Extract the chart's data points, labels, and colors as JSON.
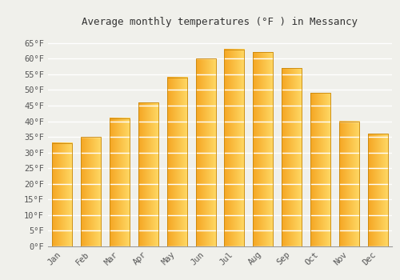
{
  "title": "Average monthly temperatures (°F ) in Messancy",
  "months": [
    "Jan",
    "Feb",
    "Mar",
    "Apr",
    "May",
    "Jun",
    "Jul",
    "Aug",
    "Sep",
    "Oct",
    "Nov",
    "Dec"
  ],
  "values": [
    33,
    35,
    41,
    46,
    54,
    60,
    63,
    62,
    57,
    49,
    40,
    36
  ],
  "bar_color_left": "#F5A623",
  "bar_color_right": "#FFD966",
  "bar_edge_color": "#C8860A",
  "background_color": "#F0F0EB",
  "ylim": [
    0,
    68
  ],
  "yticks": [
    0,
    5,
    10,
    15,
    20,
    25,
    30,
    35,
    40,
    45,
    50,
    55,
    60,
    65
  ],
  "title_fontsize": 9,
  "tick_fontsize": 7.5,
  "grid_color": "#FFFFFF",
  "title_font": "monospace",
  "bar_width": 0.7
}
